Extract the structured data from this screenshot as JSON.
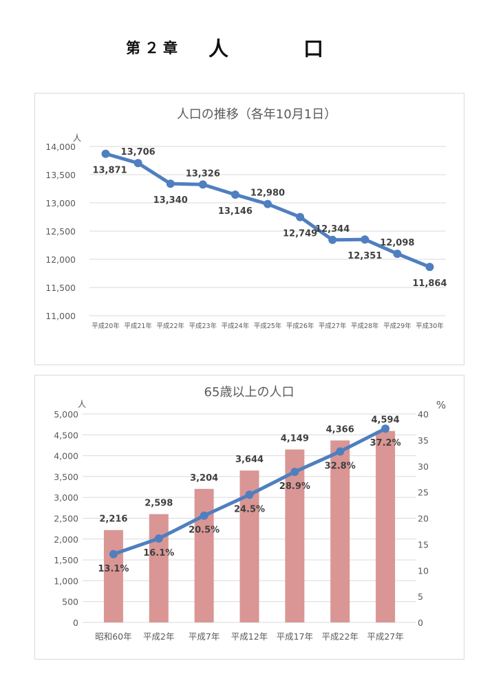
{
  "heading": {
    "chapter": "第２章",
    "title_1": "人",
    "title_2": "口"
  },
  "colors": {
    "line": "#4f7fbf",
    "bar": "#d99694",
    "grid": "#d9d9d9",
    "text": "#595959"
  },
  "chart_data": [
    {
      "type": "line",
      "title": "人口の推移（各年10月1日）",
      "ylabel": "人",
      "ylim": [
        11000,
        14000
      ],
      "yticks": [
        "11,000",
        "11,500",
        "12,000",
        "12,500",
        "13,000",
        "13,500",
        "14,000"
      ],
      "ytick_values": [
        11000,
        11500,
        12000,
        12500,
        13000,
        13500,
        14000
      ],
      "grid": true,
      "categories": [
        "平成20年",
        "平成21年",
        "平成22年",
        "平成23年",
        "平成24年",
        "平成25年",
        "平成26年",
        "平成27年",
        "平成28年",
        "平成29年",
        "平成30年"
      ],
      "values": [
        13871,
        13706,
        13340,
        13326,
        13146,
        12980,
        12749,
        12344,
        12351,
        12098,
        11864
      ],
      "data_labels": [
        "13,871",
        "13,706",
        "13,340",
        "13,326",
        "13,146",
        "12,980",
        "12,749",
        "12,344",
        "12,351",
        "12,098",
        "11,864"
      ]
    },
    {
      "type": "bar+line",
      "title": "65歳以上の人口",
      "ylabel": "人",
      "y2label": "%",
      "ylim": [
        0,
        5000
      ],
      "y2lim": [
        0,
        40
      ],
      "yticks": [
        "0",
        "500",
        "1,000",
        "1,500",
        "2,000",
        "2,500",
        "3,000",
        "3,500",
        "4,000",
        "4,500",
        "5,000"
      ],
      "ytick_values": [
        0,
        500,
        1000,
        1500,
        2000,
        2500,
        3000,
        3500,
        4000,
        4500,
        5000
      ],
      "y2ticks": [
        "0",
        "5",
        "10",
        "15",
        "20",
        "25",
        "30",
        "35",
        "40"
      ],
      "y2tick_values": [
        0,
        5,
        10,
        15,
        20,
        25,
        30,
        35,
        40
      ],
      "grid": true,
      "categories": [
        "昭和60年",
        "平成2年",
        "平成7年",
        "平成12年",
        "平成17年",
        "平成22年",
        "平成27年"
      ],
      "series": [
        {
          "kind": "bar",
          "axis": "left",
          "values": [
            2216,
            2598,
            3204,
            3644,
            4149,
            4366,
            4594
          ],
          "data_labels": [
            "2,216",
            "2,598",
            "3,204",
            "3,644",
            "4,149",
            "4,366",
            "4,594"
          ]
        },
        {
          "kind": "line",
          "axis": "right",
          "values": [
            13.1,
            16.1,
            20.5,
            24.5,
            28.9,
            32.8,
            37.2
          ],
          "data_labels": [
            "13.1%",
            "16.1%",
            "20.5%",
            "24.5%",
            "28.9%",
            "32.8%",
            "37.2%"
          ]
        }
      ]
    }
  ]
}
